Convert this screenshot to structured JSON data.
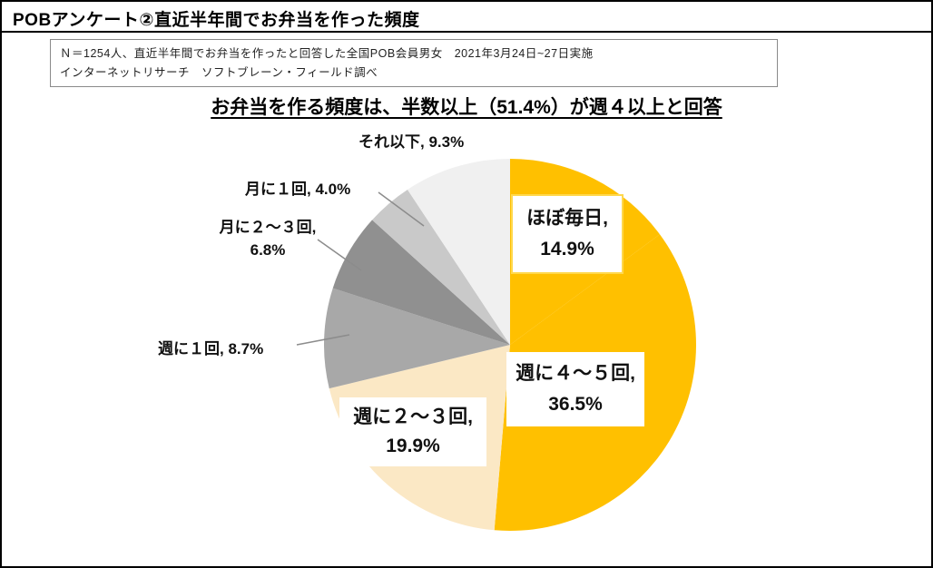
{
  "window": {
    "title": "POBアンケート②直近半年間でお弁当を作った頻度"
  },
  "note": {
    "line1": "Ｎ＝1254人、直近半年間でお弁当を作ったと回答した全国POB会員男女　2021年3月24日~27日実施",
    "line2": "インターネットリサーチ　ソフトブレーン・フィールド調べ"
  },
  "chart_data": {
    "type": "pie",
    "title": "お弁当を作る頻度は、半数以上（51.4%）が週４以上と回答",
    "unit": "%",
    "start_angle_deg": 0,
    "direction": "clockwise",
    "legend": "none",
    "slices": [
      {
        "label": "ほぼ毎日",
        "value": 14.9,
        "color": "#FFC000"
      },
      {
        "label": "週に４～５回",
        "value": 36.5,
        "color": "#FFC000"
      },
      {
        "label": "週に２～３回",
        "value": 19.9,
        "color": "#FBE8C5"
      },
      {
        "label": "週に１回",
        "value": 8.7,
        "color": "#A8A8A8"
      },
      {
        "label": "月に２～３回",
        "value": 6.8,
        "color": "#909090"
      },
      {
        "label": "月に１回",
        "value": 4.0,
        "color": "#C9C9C9"
      },
      {
        "label": "それ以下",
        "value": 9.3,
        "color": "#F0F0F0"
      }
    ]
  },
  "callouts": {
    "sore_ika": {
      "text": "それ以下, 9.3%"
    },
    "tsuki_1": {
      "text": "月に１回, 4.0%"
    },
    "tsuki_2_3": {
      "line1": "月に２～３回,",
      "line2": "6.8%"
    },
    "shu_1": {
      "text": "週に１回, 8.7%"
    },
    "shu_2_3": {
      "line1": "週に２～３回,",
      "line2": "19.9%"
    },
    "hobo_mainichi": {
      "line1": "ほぼ毎日,",
      "line2": "14.9%"
    },
    "shu_4_5": {
      "line1": "週に４～５回,",
      "line2": "36.5%"
    }
  }
}
